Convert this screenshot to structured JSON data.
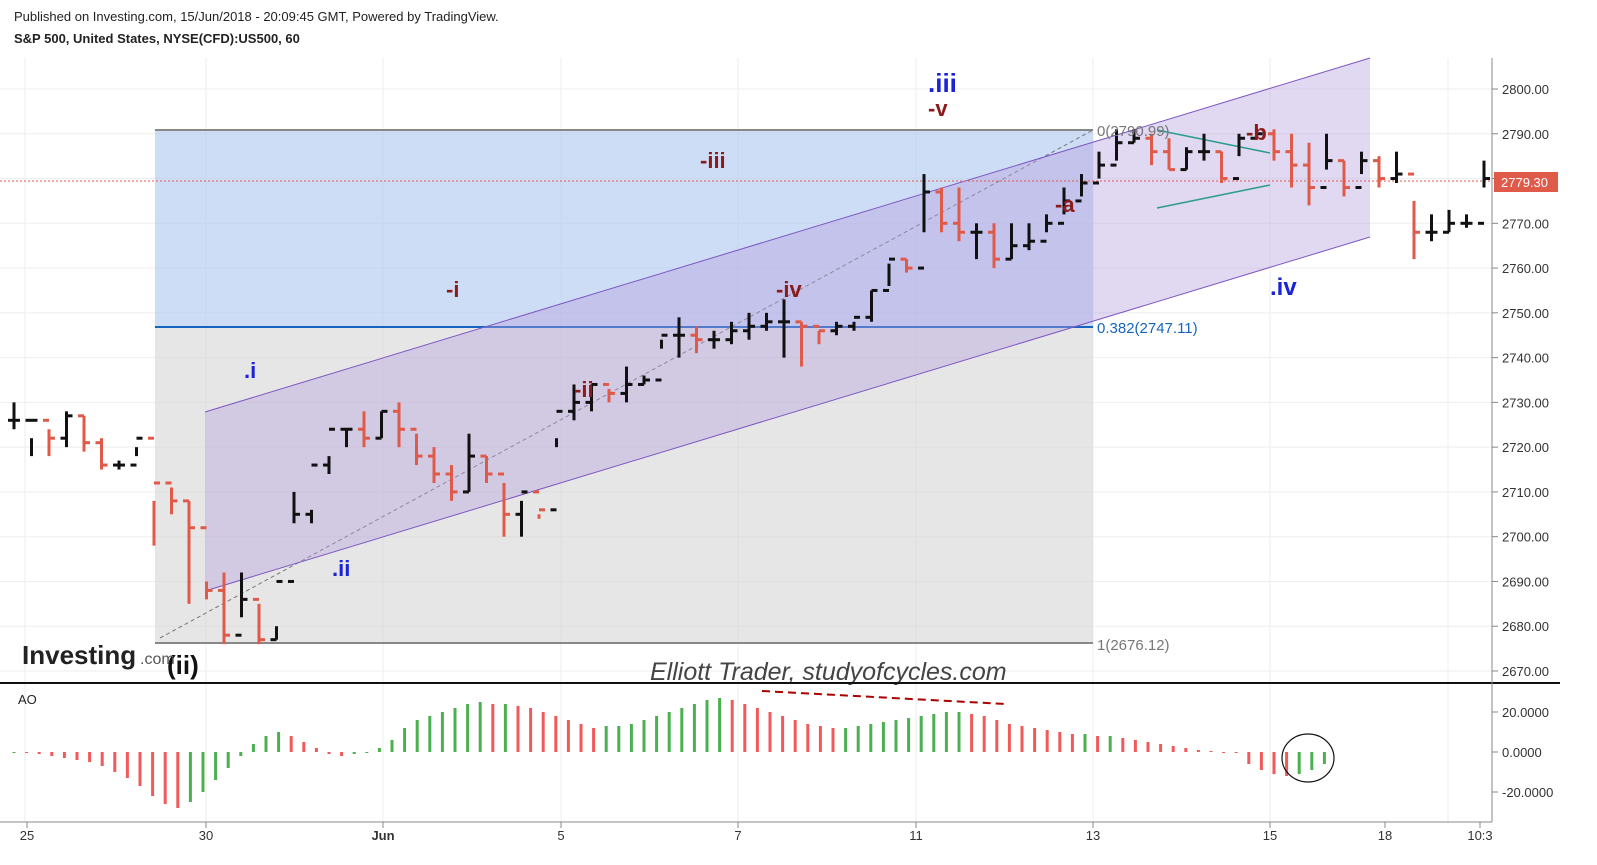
{
  "header": {
    "published": "Published on Investing.com, 15/Jun/2018 - 20:09:45 GMT, Powered by TradingView.",
    "title": "S&P 500, United States, NYSE(CFD):US500, 60"
  },
  "logo": {
    "text": "Investing",
    "suffix": ".com"
  },
  "watermark": "Elliott  Trader, studyofcycles.com",
  "colors": {
    "up": "#111111",
    "down": "#e05a4a",
    "ao_up": "#4caf50",
    "ao_down": "#f05a5a",
    "channel": "#7e57c2",
    "fib_blue": "#1565c0",
    "wave_blue": "#1a23d6",
    "wave_red": "#8b1a1a"
  },
  "price_axis": {
    "ticks": [
      "2800.00",
      "2790.00",
      "2780.00",
      "2770.00",
      "2760.00",
      "2750.00",
      "2740.00",
      "2730.00",
      "2720.00",
      "2710.00",
      "2700.00",
      "2690.00",
      "2680.00",
      "2670.00"
    ],
    "last_price": "2779.30"
  },
  "ao_axis": {
    "label": "AO",
    "ticks": [
      "20.0000",
      "0.0000",
      "-20.0000"
    ]
  },
  "time_axis": {
    "labels": [
      "25",
      "30",
      "Jun",
      "5",
      "7",
      "11",
      "13",
      "15",
      "18",
      "10:3"
    ]
  },
  "fib": {
    "top": "0(2790.99)",
    "mid": "0.382(2747.11)",
    "bottom": "1(2676.12)"
  },
  "wave_labels": {
    "ii_big": "(ii)",
    "i": ".i",
    "ii": ".ii",
    "iii": ".iii",
    "iv": ".iv",
    "m_i": "-i",
    "m_ii": "-ii",
    "m_iii": "-iii",
    "m_iv": "-iv",
    "m_v": "-v",
    "m_a": "-a",
    "m_b": "-b"
  },
  "chart_data": {
    "type": "ohlc",
    "symbol": "S&P 500 (US500), 60 min",
    "ylim": [
      2666,
      2807
    ],
    "bars": [
      [
        0,
        2730,
        2726,
        2724
      ],
      [
        0.25,
        2722,
        2726,
        2718
      ],
      [
        0.5,
        2724,
        2722,
        2718
      ],
      [
        0.75,
        2728,
        2727,
        2720
      ],
      [
        1,
        2727,
        2721,
        2719
      ],
      [
        1.25,
        2722,
        2716,
        2715
      ],
      [
        1.5,
        2717,
        2716,
        2715
      ],
      [
        1.75,
        2720,
        2722,
        2718
      ],
      [
        2,
        2708,
        2712,
        2698
      ],
      [
        2.25,
        2711,
        2708,
        2705
      ],
      [
        2.5,
        2708,
        2702,
        2685
      ],
      [
        2.75,
        2690,
        2688,
        2686
      ],
      [
        3,
        2692,
        2678,
        2676
      ],
      [
        3.25,
        2692,
        2686,
        2682
      ],
      [
        3.5,
        2685,
        2677,
        2676
      ],
      [
        3.75,
        2680,
        2690,
        2677
      ],
      [
        4,
        2710,
        2705,
        2703
      ],
      [
        4.25,
        2706,
        2716,
        2703
      ],
      [
        4.5,
        2718,
        2724,
        2714
      ],
      [
        4.75,
        2724,
        2724,
        2720
      ],
      [
        5,
        2728,
        2722,
        2720
      ],
      [
        5.25,
        2728,
        2728,
        2722
      ],
      [
        5.5,
        2730,
        2724,
        2720
      ],
      [
        5.75,
        2723,
        2718,
        2716
      ],
      [
        6,
        2720,
        2714,
        2712
      ],
      [
        6.25,
        2716,
        2710,
        2708
      ],
      [
        6.5,
        2723,
        2718,
        2710
      ],
      [
        6.75,
        2718,
        2714,
        2712
      ],
      [
        7,
        2712,
        2705,
        2700
      ],
      [
        7.25,
        2708,
        2710,
        2700
      ],
      [
        7.5,
        2705,
        2706,
        2704
      ],
      [
        7.75,
        2722,
        2728,
        2720
      ],
      [
        8,
        2734,
        2730,
        2726
      ],
      [
        8.25,
        2734,
        2734,
        2728
      ],
      [
        8.5,
        2733,
        2732,
        2730
      ],
      [
        8.75,
        2738,
        2734,
        2730
      ],
      [
        9,
        2736,
        2735,
        2734
      ],
      [
        9.25,
        2744,
        2745,
        2742
      ],
      [
        9.5,
        2749,
        2745,
        2740
      ],
      [
        9.75,
        2747,
        2744,
        2741
      ],
      [
        10,
        2746,
        2744,
        2742
      ],
      [
        10.25,
        2748,
        2746,
        2743
      ],
      [
        10.5,
        2750,
        2747,
        2744
      ],
      [
        10.75,
        2750,
        2748,
        2746
      ],
      [
        11,
        2753,
        2748,
        2740
      ],
      [
        11.25,
        2748,
        2747,
        2738
      ],
      [
        11.5,
        2746,
        2746,
        2743
      ],
      [
        11.75,
        2748,
        2747,
        2745
      ],
      [
        12,
        2748,
        2749,
        2746
      ],
      [
        12.25,
        2755,
        2755,
        2748
      ],
      [
        12.5,
        2761,
        2762,
        2756
      ],
      [
        12.75,
        2762,
        2760,
        2759
      ],
      [
        13,
        2781,
        2777,
        2768
      ],
      [
        13.25,
        2778,
        2770,
        2768
      ],
      [
        13.5,
        2778,
        2768,
        2766
      ],
      [
        13.75,
        2770,
        2768,
        2762
      ],
      [
        14,
        2770,
        2762,
        2760
      ],
      [
        14.25,
        2770,
        2765,
        2762
      ],
      [
        14.5,
        2770,
        2766,
        2764
      ],
      [
        14.75,
        2772,
        2770,
        2768
      ],
      [
        15,
        2778,
        2775,
        2772
      ],
      [
        15.25,
        2781,
        2779,
        2776
      ],
      [
        15.5,
        2786,
        2783,
        2780
      ],
      [
        15.75,
        2791,
        2788,
        2784
      ],
      [
        16,
        2791,
        2789,
        2788
      ],
      [
        16.25,
        2790,
        2786,
        2783
      ],
      [
        16.5,
        2789,
        2782,
        2782
      ],
      [
        16.75,
        2787,
        2786,
        2782
      ],
      [
        17,
        2790,
        2786,
        2784
      ],
      [
        17.25,
        2786,
        2780,
        2779
      ],
      [
        17.5,
        2790,
        2789,
        2785
      ],
      [
        17.75,
        2791,
        2790,
        2789
      ],
      [
        18,
        2791,
        2786,
        2784
      ],
      [
        18.25,
        2790,
        2783,
        2778
      ],
      [
        18.5,
        2788,
        2778,
        2774
      ],
      [
        18.75,
        2790,
        2784,
        2782
      ],
      [
        19,
        2784,
        2778,
        2776
      ],
      [
        19.25,
        2786,
        2784,
        2781
      ],
      [
        19.5,
        2785,
        2780,
        2778
      ],
      [
        19.75,
        2786,
        2781,
        2779
      ],
      [
        20,
        2775,
        2768,
        2762
      ],
      [
        20.25,
        2772,
        2768,
        2766
      ],
      [
        20.5,
        2773,
        2770,
        2768
      ],
      [
        20.75,
        2772,
        2770,
        2769
      ],
      [
        21,
        2784,
        2780,
        2778
      ],
      [
        21.25,
        2781,
        2779,
        2777
      ]
    ],
    "ao": [
      0,
      -0.5,
      -1,
      -2,
      -3,
      -4,
      -5,
      -7,
      -10,
      -13,
      -17,
      -22,
      -26,
      -28,
      -25,
      -20,
      -14,
      -8,
      -2,
      4,
      8,
      10,
      8,
      5,
      2,
      -1,
      -2,
      -1,
      0,
      2,
      6,
      12,
      16,
      18,
      20,
      22,
      24,
      25,
      24,
      24,
      23,
      22,
      20,
      18,
      16,
      14,
      12,
      13,
      13,
      14,
      16,
      18,
      20,
      22,
      24,
      26,
      27,
      26,
      24,
      22,
      20,
      18,
      16,
      14,
      13,
      12,
      12,
      13,
      14,
      15,
      16,
      17,
      18,
      19,
      20,
      20,
      19,
      18,
      16,
      14,
      13,
      12,
      11,
      10,
      9,
      9,
      8,
      8,
      7,
      6,
      5,
      4,
      3,
      2,
      1,
      0.5,
      0,
      -0.5,
      -6,
      -9,
      -11,
      -12,
      -11,
      -9,
      -6
    ],
    "annotations": [
      "(ii)",
      ".i",
      ".ii",
      ".iii",
      ".iv",
      "-i",
      "-ii",
      "-iii",
      "-iv",
      "-v",
      "-a",
      "-b"
    ]
  }
}
